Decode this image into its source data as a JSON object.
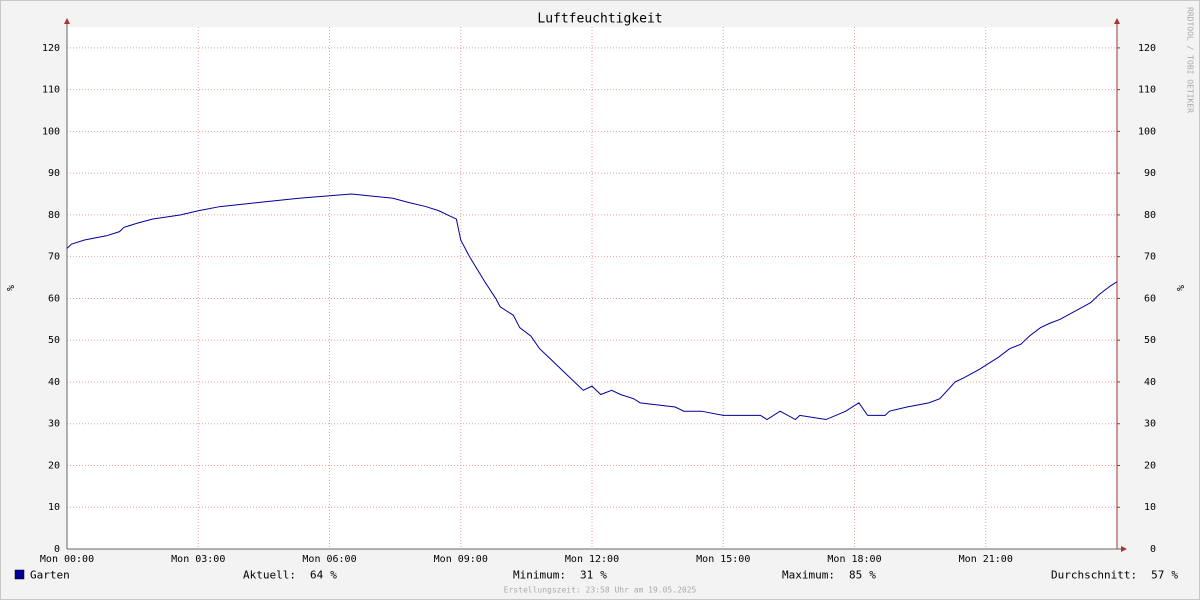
{
  "chart_data": {
    "type": "line",
    "title": "Luftfeuchtigkeit",
    "ylabel": "%",
    "y2label": "%",
    "x": [
      0,
      0.1,
      0.4,
      0.9,
      1.2,
      1.3,
      1.6,
      1.95,
      2.6,
      3.0,
      3.5,
      4.4,
      5.3,
      6.5,
      7.45,
      7.8,
      8.2,
      8.5,
      8.7,
      8.9,
      9.0,
      9.2,
      9.55,
      9.8,
      9.9,
      10.2,
      10.35,
      10.6,
      10.8,
      11.0,
      11.2,
      11.4,
      11.6,
      11.8,
      12.0,
      12.2,
      12.45,
      12.65,
      12.95,
      13.1,
      13.9,
      14.1,
      14.5,
      15.0,
      15.85,
      16.0,
      16.3,
      16.65,
      16.75,
      17.35,
      17.8,
      18.1,
      18.3,
      18.7,
      18.8,
      19.2,
      19.7,
      19.95,
      20.3,
      20.5,
      20.85,
      21.3,
      21.55,
      21.8,
      22.0,
      22.25,
      22.45,
      22.7,
      23.05,
      23.4,
      23.6,
      23.85,
      24.0
    ],
    "series": [
      {
        "name": "Garten",
        "color": "#000099",
        "values": [
          72,
          73,
          74,
          75,
          76,
          77,
          78,
          79,
          80,
          81,
          82,
          83,
          84,
          85,
          84,
          83,
          82,
          81,
          80,
          79,
          74,
          70,
          64,
          60,
          58,
          56,
          53,
          51,
          48,
          46,
          44,
          42,
          40,
          38,
          39,
          37,
          38,
          37,
          36,
          35,
          34,
          33,
          33,
          32,
          32,
          31,
          33,
          31,
          32,
          31,
          33,
          35,
          32,
          32,
          33,
          34,
          35,
          36,
          40,
          41,
          43,
          46,
          48,
          49,
          51,
          53,
          54,
          55,
          57,
          59,
          61,
          63,
          64
        ]
      }
    ],
    "xlim": [
      0,
      24
    ],
    "xticks": [
      {
        "value": 0,
        "label": "Mon 00:00"
      },
      {
        "value": 3,
        "label": "Mon 03:00"
      },
      {
        "value": 6,
        "label": "Mon 06:00"
      },
      {
        "value": 9,
        "label": "Mon 09:00"
      },
      {
        "value": 12,
        "label": "Mon 12:00"
      },
      {
        "value": 15,
        "label": "Mon 15:00"
      },
      {
        "value": 18,
        "label": "Mon 18:00"
      },
      {
        "value": 21,
        "label": "Mon 21:00"
      }
    ],
    "ylim": [
      0,
      125
    ],
    "yticks": [
      0,
      10,
      20,
      30,
      40,
      50,
      60,
      70,
      80,
      90,
      100,
      110,
      120
    ],
    "y2lim": [
      0,
      125
    ],
    "y2ticks": [
      0,
      10,
      20,
      30,
      40,
      50,
      60,
      70,
      80,
      90,
      100,
      110,
      120
    ],
    "grid": true,
    "stats": [
      {
        "label": "Aktuell:",
        "value": 64,
        "unit": "%"
      },
      {
        "label": "Minimum:",
        "value": 31,
        "unit": "%"
      },
      {
        "label": "Maximum:",
        "value": 85,
        "unit": "%"
      },
      {
        "label": "Durchschnitt:",
        "value": 57,
        "unit": "%"
      }
    ],
    "footer": "Erstellungszeit: 23:58 Uhr am 19.05.2025",
    "watermark": "RRDTOOL / TOBI OETIKER"
  }
}
